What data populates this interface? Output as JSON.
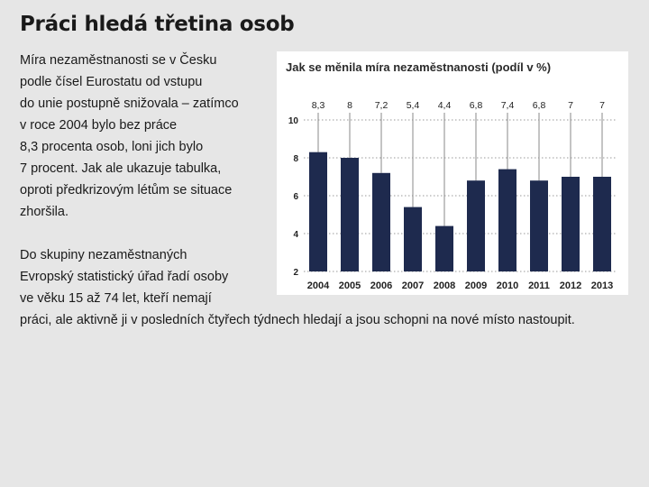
{
  "page": {
    "title": "Práci hledá třetina osob",
    "text_lines": [
      "Míra nezaměstnanosti se v Česku",
      "podle čísel Eurostatu od vstupu",
      "do unie postupně snižovala – zatímco",
      "v roce 2004 bylo bez práce",
      "8,3 procenta osob, loni jich bylo",
      "7 procent. Jak ale ukazuje tabulka,",
      "oproti předkrizovým létům se situace",
      "zhoršila.",
      "",
      "Do skupiny nezaměstnaných",
      "Evropský statistický úřad řadí osoby",
      "ve věku 15 až 74 let, kteří nemají",
      "práci, ale aktivně ji v posledních čtyřech týdnech hledají a jsou schopni na nové místo nastoupit."
    ]
  },
  "chart_data": {
    "type": "bar",
    "title": "Jak se měnila míra nezaměstnanosti (podíl v %)",
    "categories": [
      "2004",
      "2005",
      "2006",
      "2007",
      "2008",
      "2009",
      "2010",
      "2011",
      "2012",
      "2013"
    ],
    "values": [
      8.3,
      8,
      7.2,
      5.4,
      4.4,
      6.8,
      7.4,
      6.8,
      7,
      7
    ],
    "value_labels": [
      "8,3",
      "8",
      "7,2",
      "5,4",
      "4,4",
      "6,8",
      "7,4",
      "6,8",
      "7",
      "7"
    ],
    "y_ticks": [
      "2",
      "4",
      "6",
      "8",
      "10"
    ],
    "ylim": [
      2,
      10
    ],
    "grid": true,
    "colors": {
      "bar": "#1e2a4e",
      "grid": "#9a9a9a",
      "connector": "#8a8a8a"
    }
  }
}
